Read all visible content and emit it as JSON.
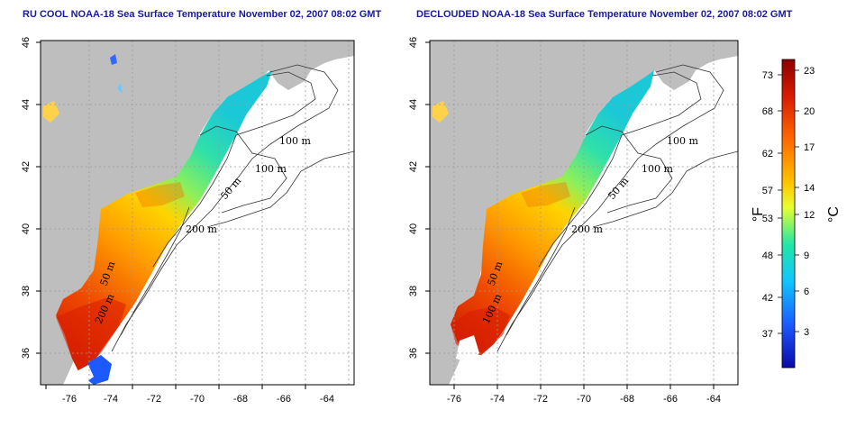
{
  "panels": [
    {
      "id": "left",
      "title": "RU COOL NOAA-18 Sea Surface Temperature November 02, 2007 08:02 GMT",
      "contour_labels": [
        "100 m",
        "100 m",
        "50 m",
        "200 m",
        "50 m",
        "200 m"
      ]
    },
    {
      "id": "right",
      "title": "DECLOUDED NOAA-18 Sea Surface Temperature November 02, 2007 08:02 GMT",
      "contour_labels": [
        "100 m",
        "100 m",
        "50 m",
        "200 m",
        "50 m",
        "100 m"
      ]
    }
  ],
  "map_axes": {
    "lon_ticks": [
      "-76",
      "-74",
      "-72",
      "-70",
      "-68",
      "-66",
      "-64"
    ],
    "lat_ticks": [
      "46",
      "44",
      "42",
      "40",
      "38",
      "36"
    ]
  },
  "colorbar": {
    "fahrenheit_label": "°F",
    "celsius_label": "°C",
    "fahrenheit_ticks": [
      "73",
      "68",
      "62",
      "57",
      "53",
      "48",
      "42",
      "37"
    ],
    "celsius_ticks": [
      "23",
      "20",
      "17",
      "14",
      "12",
      "9",
      "6",
      "3"
    ],
    "colors": [
      "#8b0000",
      "#d81c00",
      "#ff6a00",
      "#ffc400",
      "#e8ff30",
      "#22e6a6",
      "#10c6ff",
      "#1c5aff",
      "#0a0aa8"
    ]
  }
}
